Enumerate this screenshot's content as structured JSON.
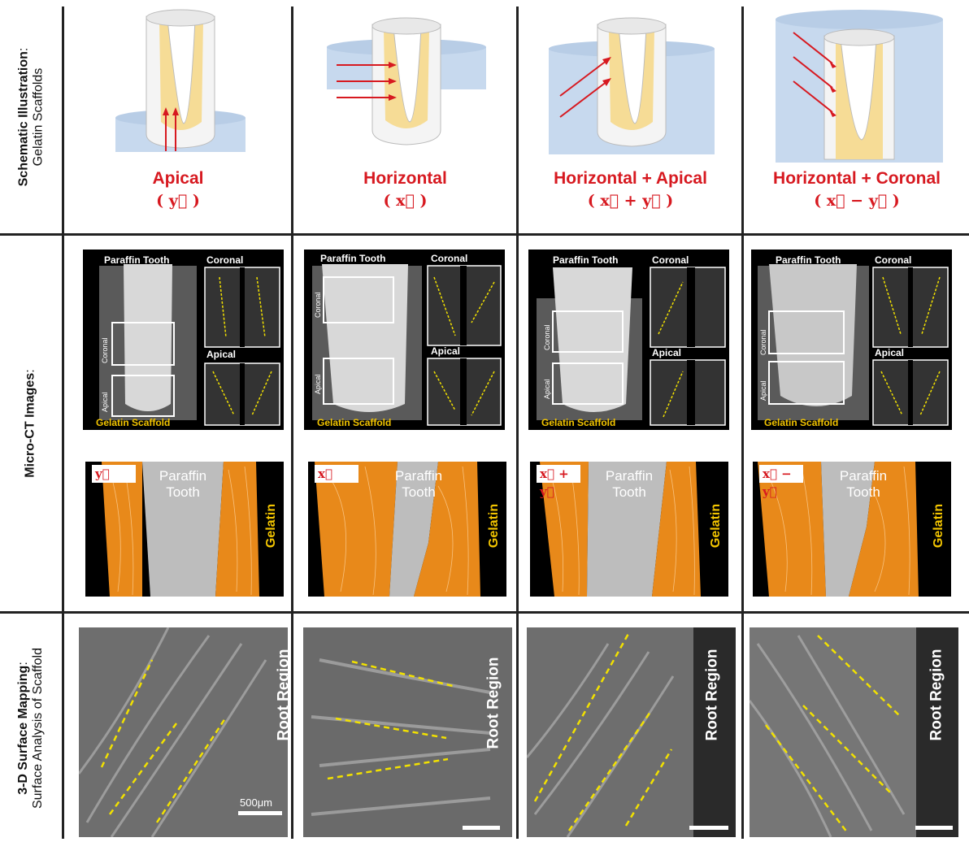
{
  "row_labels": {
    "row1_bold": "Schematic Illustration",
    "row1_colon": ":",
    "row1_sub": "Gelatin Scaffolds",
    "row2_bold": "Micro-CT Images",
    "row2_colon": ":",
    "row3_bold": "3-D Surface Mapping",
    "row3_colon": ":",
    "row3_sub": "Surface Analysis of Scaffold"
  },
  "columns": [
    {
      "method": "Apical",
      "vector": "( y⃗ )",
      "tag": "y⃗"
    },
    {
      "method": "Horizontal",
      "vector": "( x⃗ )",
      "tag": "x⃗"
    },
    {
      "method": "Horizontal + Apical",
      "vector": "( x⃗ + y⃗ )",
      "tag": "x⃗ + y⃗"
    },
    {
      "method": "Horizontal + Coronal",
      "vector": "( x⃗ − y⃗ )",
      "tag": "x⃗ − y⃗"
    }
  ],
  "ct_labels": {
    "paraffin_tooth": "Paraffin Tooth",
    "coronal": "Coronal",
    "apical": "Apical",
    "gelatin_scaffold": "Gelatin Scaffold",
    "side_coronal": "Coronal",
    "side_apical": "Apical"
  },
  "seg_labels": {
    "paraffin": "Paraffin",
    "tooth": "Tooth",
    "gelatin": "Gelatin"
  },
  "sem_labels": {
    "root_region": "Root Region",
    "scale": "500μm"
  },
  "colors": {
    "accent_red": "#d71920",
    "gelatin_yellow": "#f2c400",
    "scaffold_orange": "#e8891a",
    "water_blue": "#c7d9ee",
    "gelatin_fill": "#f6dc96"
  }
}
